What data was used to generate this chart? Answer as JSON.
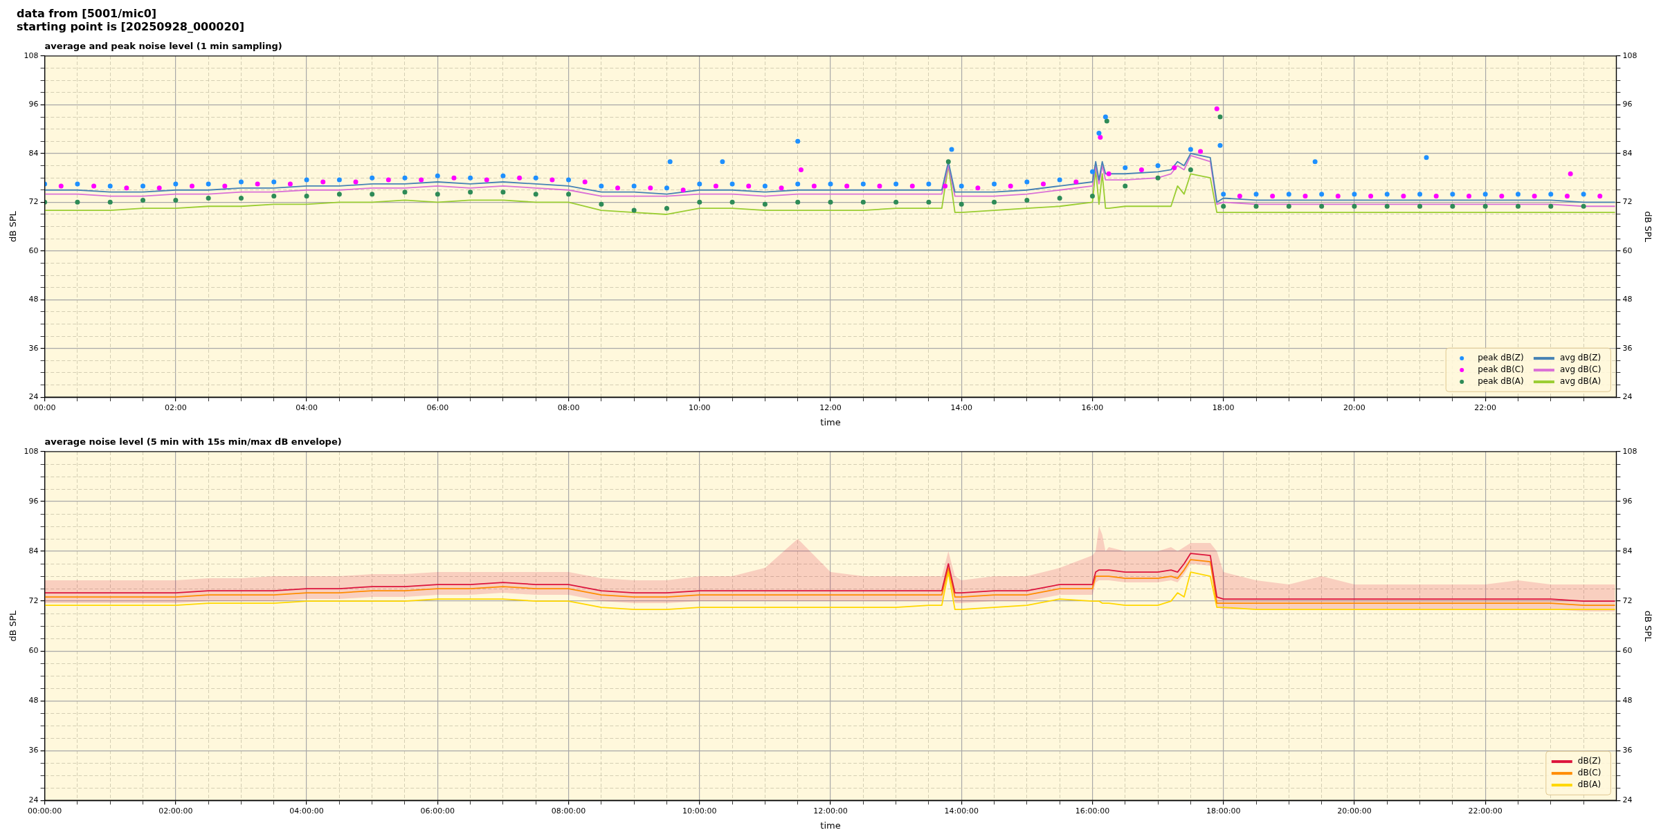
{
  "chart_data": [
    {
      "type": "line",
      "title": "average and peak noise level (1 min sampling)",
      "annotations": [
        "data from [5001/mic0]",
        "starting point is [20250928_000020]"
      ],
      "xlabel": "time",
      "ylabel": "dB SPL",
      "y2label": "dB SPL",
      "grid": true,
      "legend": "bottom right",
      "xlim": [
        0,
        24
      ],
      "xticks": [
        {
          "value": 0,
          "label": "00:00"
        },
        {
          "value": 0.5,
          "label": null
        },
        {
          "value": 1,
          "label": null
        },
        {
          "value": 1.5,
          "label": null
        },
        {
          "value": 2,
          "label": "02:00"
        },
        {
          "value": 2.5,
          "label": null
        },
        {
          "value": 3,
          "label": null
        },
        {
          "value": 3.5,
          "label": null
        },
        {
          "value": 4,
          "label": "04:00"
        },
        {
          "value": 4.5,
          "label": null
        },
        {
          "value": 5,
          "label": null
        },
        {
          "value": 5.5,
          "label": null
        },
        {
          "value": 6,
          "label": "06:00"
        },
        {
          "value": 6.5,
          "label": null
        },
        {
          "value": 7,
          "label": null
        },
        {
          "value": 7.5,
          "label": null
        },
        {
          "value": 8,
          "label": "08:00"
        },
        {
          "value": 8.5,
          "label": null
        },
        {
          "value": 9,
          "label": null
        },
        {
          "value": 9.5,
          "label": null
        },
        {
          "value": 10,
          "label": "10:00"
        },
        {
          "value": 10.5,
          "label": null
        },
        {
          "value": 11,
          "label": null
        },
        {
          "value": 11.5,
          "label": null
        },
        {
          "value": 12,
          "label": "12:00"
        },
        {
          "value": 12.5,
          "label": null
        },
        {
          "value": 13,
          "label": null
        },
        {
          "value": 13.5,
          "label": null
        },
        {
          "value": 14,
          "label": "14:00"
        },
        {
          "value": 14.5,
          "label": null
        },
        {
          "value": 15,
          "label": null
        },
        {
          "value": 15.5,
          "label": null
        },
        {
          "value": 16,
          "label": "16:00"
        },
        {
          "value": 16.5,
          "label": null
        },
        {
          "value": 17,
          "label": null
        },
        {
          "value": 17.5,
          "label": null
        },
        {
          "value": 18,
          "label": "18:00"
        },
        {
          "value": 18.5,
          "label": null
        },
        {
          "value": 19,
          "label": null
        },
        {
          "value": 19.5,
          "label": null
        },
        {
          "value": 20,
          "label": "20:00"
        },
        {
          "value": 20.5,
          "label": null
        },
        {
          "value": 21,
          "label": null
        },
        {
          "value": 21.5,
          "label": null
        },
        {
          "value": 22,
          "label": "22:00"
        },
        {
          "value": 22.5,
          "label": null
        },
        {
          "value": 23,
          "label": null
        },
        {
          "value": 23.5,
          "label": null
        }
      ],
      "ylim": [
        24,
        108
      ],
      "yticks": [
        24,
        {
          "value": 27,
          "label": null
        },
        {
          "value": 30,
          "label": null
        },
        {
          "value": 33,
          "label": null
        },
        36,
        {
          "value": 39,
          "label": null
        },
        {
          "value": 42,
          "label": null
        },
        {
          "value": 45,
          "label": null
        },
        48,
        {
          "value": 51,
          "label": null
        },
        {
          "value": 54,
          "label": null
        },
        {
          "value": 57,
          "label": null
        },
        60,
        {
          "value": 63,
          "label": null
        },
        {
          "value": 66,
          "label": null
        },
        {
          "value": 69,
          "label": null
        },
        72,
        {
          "value": 75,
          "label": null
        },
        {
          "value": 78,
          "label": null
        },
        {
          "value": 81,
          "label": null
        },
        84,
        {
          "value": 87,
          "label": null
        },
        {
          "value": 90,
          "label": null
        },
        {
          "value": 93,
          "label": null
        },
        96,
        {
          "value": 99,
          "label": null
        },
        {
          "value": 102,
          "label": null
        },
        {
          "value": 105,
          "label": null
        },
        108
      ],
      "y2lim": [
        24,
        108
      ],
      "y2ticks": [
        24,
        {
          "value": 27,
          "label": null
        },
        {
          "value": 30,
          "label": null
        },
        {
          "value": 33,
          "label": null
        },
        36,
        {
          "value": 39,
          "label": null
        },
        {
          "value": 42,
          "label": null
        },
        {
          "value": 45,
          "label": null
        },
        48,
        {
          "value": 51,
          "label": null
        },
        {
          "value": 54,
          "label": null
        },
        {
          "value": 57,
          "label": null
        },
        60,
        {
          "value": 63,
          "label": null
        },
        {
          "value": 66,
          "label": null
        },
        {
          "value": 69,
          "label": null
        },
        72,
        {
          "value": 75,
          "label": null
        },
        {
          "value": 78,
          "label": null
        },
        {
          "value": 81,
          "label": null
        },
        84,
        {
          "value": 87,
          "label": null
        },
        {
          "value": 90,
          "label": null
        },
        {
          "value": 93,
          "label": null
        },
        96,
        {
          "value": 99,
          "label": null
        },
        {
          "value": 102,
          "label": null
        },
        {
          "value": 105,
          "label": null
        },
        108
      ],
      "x": [
        0,
        0.5,
        1,
        1.5,
        2,
        2.5,
        3,
        3.5,
        4,
        4.5,
        5,
        5.5,
        6,
        6.5,
        7,
        7.5,
        8,
        8.5,
        9,
        9.5,
        10,
        10.5,
        11,
        11.5,
        12,
        12.5,
        13,
        13.5,
        13.7,
        13.8,
        13.9,
        14,
        14.5,
        15,
        15.5,
        16,
        16.05,
        16.1,
        16.15,
        16.2,
        16.25,
        16.5,
        17,
        17.2,
        17.3,
        17.4,
        17.5,
        17.8,
        17.9,
        18,
        18.5,
        19,
        19.5,
        20,
        20.5,
        21,
        21.5,
        22,
        22.5,
        23,
        23.5,
        23.98
      ],
      "series": [
        {
          "name": "peak dB(Z)",
          "type": "scatter",
          "marker": "circle",
          "color": "#1e90ff",
          "x": [
            0,
            0.5,
            1,
            1.5,
            2,
            2.5,
            3,
            3.5,
            4,
            4.5,
            5,
            5.5,
            6,
            6.5,
            7,
            7.5,
            8,
            8.5,
            9,
            9.5,
            10,
            10.5,
            11,
            11.5,
            12,
            12.5,
            13,
            13.5,
            14,
            14.5,
            15,
            15.5,
            16,
            16.5,
            17,
            17.5,
            18,
            18.5,
            19,
            19.5,
            20,
            20.5,
            21,
            21.5,
            22,
            22.5,
            23,
            23.5,
            9.55,
            10.35,
            11.5,
            13.85,
            16.1,
            16.2,
            17.95,
            19.4,
            21.1
          ],
          "values": [
            76.5,
            76.5,
            76,
            76,
            76.5,
            76.5,
            77,
            77,
            77.5,
            77.5,
            78,
            78,
            78.5,
            78,
            78.5,
            78,
            77.5,
            76,
            76,
            75.5,
            76.5,
            76.5,
            76,
            76.5,
            76.5,
            76.5,
            76.5,
            76.5,
            76,
            76.5,
            77,
            77.5,
            79.5,
            80.5,
            81,
            85,
            74,
            74,
            74,
            74,
            74,
            74,
            74,
            74,
            74,
            74,
            74,
            74,
            82,
            82,
            87,
            85,
            89,
            93,
            86,
            82,
            83
          ]
        },
        {
          "name": "peak dB(C)",
          "type": "scatter",
          "marker": "circle",
          "color": "#ff00ff",
          "x": [
            0.25,
            0.75,
            1.25,
            1.75,
            2.25,
            2.75,
            3.25,
            3.75,
            4.25,
            4.75,
            5.25,
            5.75,
            6.25,
            6.75,
            7.25,
            7.75,
            8.25,
            8.75,
            9.25,
            9.75,
            10.25,
            10.75,
            11.25,
            11.75,
            12.25,
            12.75,
            13.25,
            13.75,
            14.25,
            14.75,
            15.25,
            15.75,
            16.25,
            16.75,
            17.25,
            17.65,
            18.25,
            18.75,
            19.25,
            19.75,
            20.25,
            20.75,
            21.25,
            21.75,
            22.25,
            22.75,
            23.25,
            23.75,
            11.55,
            16.12,
            17.9,
            23.3
          ],
          "values": [
            76,
            76,
            75.5,
            75.5,
            76,
            76,
            76.5,
            76.5,
            77,
            77,
            77.5,
            77.5,
            78,
            77.5,
            78,
            77.5,
            77,
            75.5,
            75.5,
            75,
            76,
            76,
            75.5,
            76,
            76,
            76,
            76,
            76,
            75.5,
            76,
            76.5,
            77,
            79,
            80,
            80.5,
            84.5,
            73.5,
            73.5,
            73.5,
            73.5,
            73.5,
            73.5,
            73.5,
            73.5,
            73.5,
            73.5,
            73.5,
            73.5,
            80,
            88,
            95,
            79
          ]
        },
        {
          "name": "peak dB(A)",
          "type": "scatter",
          "marker": "circle",
          "color": "#2e8b57",
          "x": [
            0,
            0.5,
            1,
            1.5,
            2,
            2.5,
            3,
            3.5,
            4,
            4.5,
            5,
            5.5,
            6,
            6.5,
            7,
            7.5,
            8,
            8.5,
            9,
            9.5,
            10,
            10.5,
            11,
            11.5,
            12,
            12.5,
            13,
            13.5,
            14,
            14.5,
            15,
            15.5,
            16,
            16.5,
            17,
            17.5,
            18,
            18.5,
            19,
            19.5,
            20,
            20.5,
            21,
            21.5,
            22,
            22.5,
            23,
            23.5,
            13.8,
            16.22,
            17.95
          ],
          "values": [
            72,
            72,
            72,
            72.5,
            72.5,
            73,
            73,
            73.5,
            73.5,
            74,
            74,
            74.5,
            74,
            74.5,
            74.5,
            74,
            74,
            71.5,
            70,
            70.5,
            72,
            72,
            71.5,
            72,
            72,
            72,
            72,
            72,
            71.5,
            72,
            72.5,
            73,
            73.5,
            76,
            78,
            80,
            71,
            71,
            71,
            71,
            71,
            71,
            71,
            71,
            71,
            71,
            71,
            71,
            82,
            92,
            93
          ]
        },
        {
          "name": "avg dB(Z)",
          "color": "#4682b4",
          "values": [
            75,
            75,
            74.5,
            74.5,
            75,
            75,
            75.5,
            75.5,
            76,
            76,
            76.5,
            76.5,
            77,
            76.5,
            77,
            76.5,
            76,
            74.5,
            74.5,
            74,
            75,
            75,
            74.5,
            75,
            75,
            75,
            75,
            75,
            75,
            82,
            74.5,
            74.5,
            74.5,
            75,
            76,
            77,
            82,
            77.5,
            82,
            79,
            79,
            79,
            79.5,
            80,
            82,
            81,
            84,
            83,
            72,
            73,
            72.5,
            72.5,
            72.5,
            72.5,
            72.5,
            72.5,
            72.5,
            72.5,
            72.5,
            72.5,
            72,
            72
          ]
        },
        {
          "name": "avg dB(C)",
          "color": "#da70d6",
          "values": [
            74,
            74,
            73.5,
            73.5,
            74,
            74,
            74.5,
            74.5,
            75,
            75,
            75.5,
            75.5,
            76,
            75.5,
            76,
            75.5,
            75,
            73.5,
            73.5,
            73.5,
            74,
            74,
            73.5,
            74,
            74,
            74,
            74,
            74,
            74,
            81,
            73.5,
            73.5,
            73.5,
            74,
            75,
            76,
            81,
            76.5,
            81,
            77.5,
            77.5,
            77.5,
            78,
            79,
            81,
            80,
            83.5,
            82,
            71.5,
            72,
            71.5,
            71.5,
            71.5,
            71.5,
            71.5,
            71.5,
            71.5,
            71.5,
            71.5,
            71.5,
            71,
            71
          ]
        },
        {
          "name": "avg dB(A)",
          "color": "#9acd32",
          "values": [
            70,
            70,
            70,
            70.5,
            70.5,
            71,
            71,
            71.5,
            71.5,
            72,
            72,
            72.5,
            72,
            72.5,
            72.5,
            72,
            72,
            70,
            69.5,
            69,
            70.5,
            70.5,
            70,
            70,
            70,
            70,
            70.5,
            70.5,
            70.5,
            81,
            69.5,
            69.5,
            70,
            70.5,
            71,
            72,
            80,
            71.5,
            79,
            70.5,
            70.5,
            71,
            71,
            71,
            76,
            74,
            79,
            78,
            69.5,
            69.5,
            69.5,
            69.5,
            69.5,
            69.5,
            69.5,
            69.5,
            69.5,
            69.5,
            69.5,
            69.5,
            69.5,
            69.5
          ]
        }
      ]
    },
    {
      "type": "line",
      "title": "average noise level (5 min with 15s min/max dB envelope)",
      "xlabel": "time",
      "ylabel": "dB SPL",
      "y2label": "dB SPL",
      "grid": true,
      "legend": "bottom right",
      "xlim": [
        0,
        24
      ],
      "xticks": [
        {
          "value": 0,
          "label": "00:00:00"
        },
        {
          "value": 0.5,
          "label": null
        },
        {
          "value": 1,
          "label": null
        },
        {
          "value": 1.5,
          "label": null
        },
        {
          "value": 2,
          "label": "02:00:00"
        },
        {
          "value": 2.5,
          "label": null
        },
        {
          "value": 3,
          "label": null
        },
        {
          "value": 3.5,
          "label": null
        },
        {
          "value": 4,
          "label": "04:00:00"
        },
        {
          "value": 4.5,
          "label": null
        },
        {
          "value": 5,
          "label": null
        },
        {
          "value": 5.5,
          "label": null
        },
        {
          "value": 6,
          "label": "06:00:00"
        },
        {
          "value": 6.5,
          "label": null
        },
        {
          "value": 7,
          "label": null
        },
        {
          "value": 7.5,
          "label": null
        },
        {
          "value": 8,
          "label": "08:00:00"
        },
        {
          "value": 8.5,
          "label": null
        },
        {
          "value": 9,
          "label": null
        },
        {
          "value": 9.5,
          "label": null
        },
        {
          "value": 10,
          "label": "10:00:00"
        },
        {
          "value": 10.5,
          "label": null
        },
        {
          "value": 11,
          "label": null
        },
        {
          "value": 11.5,
          "label": null
        },
        {
          "value": 12,
          "label": "12:00:00"
        },
        {
          "value": 12.5,
          "label": null
        },
        {
          "value": 13,
          "label": null
        },
        {
          "value": 13.5,
          "label": null
        },
        {
          "value": 14,
          "label": "14:00:00"
        },
        {
          "value": 14.5,
          "label": null
        },
        {
          "value": 15,
          "label": null
        },
        {
          "value": 15.5,
          "label": null
        },
        {
          "value": 16,
          "label": "16:00:00"
        },
        {
          "value": 16.5,
          "label": null
        },
        {
          "value": 17,
          "label": null
        },
        {
          "value": 17.5,
          "label": null
        },
        {
          "value": 18,
          "label": "18:00:00"
        },
        {
          "value": 18.5,
          "label": null
        },
        {
          "value": 19,
          "label": null
        },
        {
          "value": 19.5,
          "label": null
        },
        {
          "value": 20,
          "label": "20:00:00"
        },
        {
          "value": 20.5,
          "label": null
        },
        {
          "value": 21,
          "label": null
        },
        {
          "value": 21.5,
          "label": null
        },
        {
          "value": 22,
          "label": "22:00:00"
        },
        {
          "value": 22.5,
          "label": null
        },
        {
          "value": 23,
          "label": null
        },
        {
          "value": 23.5,
          "label": null
        }
      ],
      "ylim": [
        24,
        108
      ],
      "yticks": [
        24,
        {
          "value": 27,
          "label": null
        },
        {
          "value": 30,
          "label": null
        },
        {
          "value": 33,
          "label": null
        },
        36,
        {
          "value": 39,
          "label": null
        },
        {
          "value": 42,
          "label": null
        },
        {
          "value": 45,
          "label": null
        },
        48,
        {
          "value": 51,
          "label": null
        },
        {
          "value": 54,
          "label": null
        },
        {
          "value": 57,
          "label": null
        },
        60,
        {
          "value": 63,
          "label": null
        },
        {
          "value": 66,
          "label": null
        },
        {
          "value": 69,
          "label": null
        },
        72,
        {
          "value": 75,
          "label": null
        },
        {
          "value": 78,
          "label": null
        },
        {
          "value": 81,
          "label": null
        },
        84,
        {
          "value": 87,
          "label": null
        },
        {
          "value": 90,
          "label": null
        },
        {
          "value": 93,
          "label": null
        },
        96,
        {
          "value": 99,
          "label": null
        },
        {
          "value": 102,
          "label": null
        },
        {
          "value": 105,
          "label": null
        },
        108
      ],
      "y2lim": [
        24,
        108
      ],
      "y2ticks": [
        24,
        {
          "value": 27,
          "label": null
        },
        {
          "value": 30,
          "label": null
        },
        {
          "value": 33,
          "label": null
        },
        36,
        {
          "value": 39,
          "label": null
        },
        {
          "value": 42,
          "label": null
        },
        {
          "value": 45,
          "label": null
        },
        48,
        {
          "value": 51,
          "label": null
        },
        {
          "value": 54,
          "label": null
        },
        {
          "value": 57,
          "label": null
        },
        60,
        {
          "value": 63,
          "label": null
        },
        {
          "value": 66,
          "label": null
        },
        {
          "value": 69,
          "label": null
        },
        72,
        {
          "value": 75,
          "label": null
        },
        {
          "value": 78,
          "label": null
        },
        {
          "value": 81,
          "label": null
        },
        84,
        {
          "value": 87,
          "label": null
        },
        {
          "value": 90,
          "label": null
        },
        {
          "value": 93,
          "label": null
        },
        96,
        {
          "value": 99,
          "label": null
        },
        {
          "value": 102,
          "label": null
        },
        {
          "value": 105,
          "label": null
        },
        108
      ],
      "x": [
        0,
        0.5,
        1,
        1.5,
        2,
        2.5,
        3,
        3.5,
        4,
        4.5,
        5,
        5.5,
        6,
        6.5,
        7,
        7.5,
        8,
        8.5,
        9,
        9.5,
        10,
        10.5,
        11,
        11.5,
        12,
        12.5,
        13,
        13.5,
        13.7,
        13.8,
        13.9,
        14,
        14.5,
        15,
        15.5,
        16,
        16.05,
        16.1,
        16.15,
        16.2,
        16.25,
        16.5,
        17,
        17.2,
        17.3,
        17.4,
        17.5,
        17.8,
        17.9,
        18,
        18.5,
        19,
        19.5,
        20,
        20.5,
        21,
        21.5,
        22,
        22.5,
        23,
        23.5,
        23.98
      ],
      "series": [
        {
          "name": "dB(Z)",
          "color": "#dc143c",
          "values": [
            74,
            74,
            74,
            74,
            74,
            74.5,
            74.5,
            74.5,
            75,
            75,
            75.5,
            75.5,
            76,
            76,
            76.5,
            76,
            76,
            74.5,
            74,
            74,
            74.5,
            74.5,
            74.5,
            74.5,
            74.5,
            74.5,
            74.5,
            74.5,
            74.5,
            81,
            74,
            74,
            74.5,
            74.5,
            76,
            76,
            79,
            79.5,
            79.5,
            79.5,
            79.5,
            79,
            79,
            79.5,
            79,
            81,
            83.5,
            83,
            73,
            72.5,
            72.5,
            72.5,
            72.5,
            72.5,
            72.5,
            72.5,
            72.5,
            72.5,
            72.5,
            72.5,
            72,
            72
          ],
          "lower": [
            71.5,
            71.5,
            71.5,
            71.5,
            71.5,
            72,
            72,
            72,
            72.5,
            72.5,
            73,
            73,
            73.5,
            73.5,
            74,
            73.5,
            73.5,
            72,
            71.5,
            71.5,
            72,
            72,
            72,
            72,
            72,
            72,
            72,
            72,
            72,
            78.5,
            71.5,
            71.5,
            72,
            72,
            73.5,
            73.5,
            76.5,
            77,
            77,
            77,
            77,
            76.5,
            76.5,
            77,
            76.5,
            78.5,
            81,
            80.5,
            70.5,
            70,
            70,
            70,
            70,
            70,
            70,
            70,
            70,
            70,
            70,
            70,
            69.5,
            69.5
          ],
          "upper": [
            77,
            77,
            77,
            77,
            77,
            77.5,
            77.5,
            78,
            78,
            78,
            78.5,
            78.5,
            79,
            79,
            79,
            79,
            79,
            77.5,
            77,
            77,
            78,
            78,
            80,
            87,
            79,
            78,
            78,
            78,
            78,
            84,
            78,
            77,
            78,
            78,
            80,
            83,
            84,
            90,
            88,
            84,
            85,
            84,
            84,
            85,
            84,
            85,
            86,
            86,
            84,
            79,
            77,
            76,
            78,
            76,
            76,
            76,
            76,
            76,
            77,
            76,
            76,
            76
          ]
        },
        {
          "name": "dB(C)",
          "color": "#ff8c00",
          "values": [
            73,
            73,
            73,
            73,
            73,
            73.5,
            73.5,
            73.5,
            74,
            74,
            74.5,
            74.5,
            75,
            75,
            75.5,
            75,
            75,
            73.5,
            73,
            73,
            73.5,
            73.5,
            73.5,
            73.5,
            73.5,
            73.5,
            73.5,
            73.5,
            73.5,
            80,
            73,
            73,
            73.5,
            73.5,
            75,
            75,
            78,
            78,
            78,
            78,
            78,
            77.5,
            77.5,
            78,
            77.5,
            79.5,
            82,
            81.5,
            71.5,
            71.5,
            71.5,
            71.5,
            71.5,
            71.5,
            71.5,
            71.5,
            71.5,
            71.5,
            71.5,
            71.5,
            71,
            71
          ]
        },
        {
          "name": "dB(A)",
          "color": "#ffd700",
          "values": [
            71,
            71,
            71,
            71,
            71,
            71.5,
            71.5,
            71.5,
            72,
            72,
            72,
            72,
            72.5,
            72.5,
            72.5,
            72,
            72,
            70.5,
            70,
            70,
            70.5,
            70.5,
            70.5,
            70.5,
            70.5,
            70.5,
            70.5,
            71,
            71,
            79,
            70,
            70,
            70.5,
            71,
            72.5,
            72,
            72,
            72,
            71.5,
            71.5,
            71.5,
            71,
            71,
            72,
            74,
            73,
            79,
            78,
            70.5,
            70.5,
            70,
            70,
            70,
            70,
            70,
            70,
            70,
            70,
            70,
            70,
            70,
            70
          ]
        }
      ]
    }
  ]
}
